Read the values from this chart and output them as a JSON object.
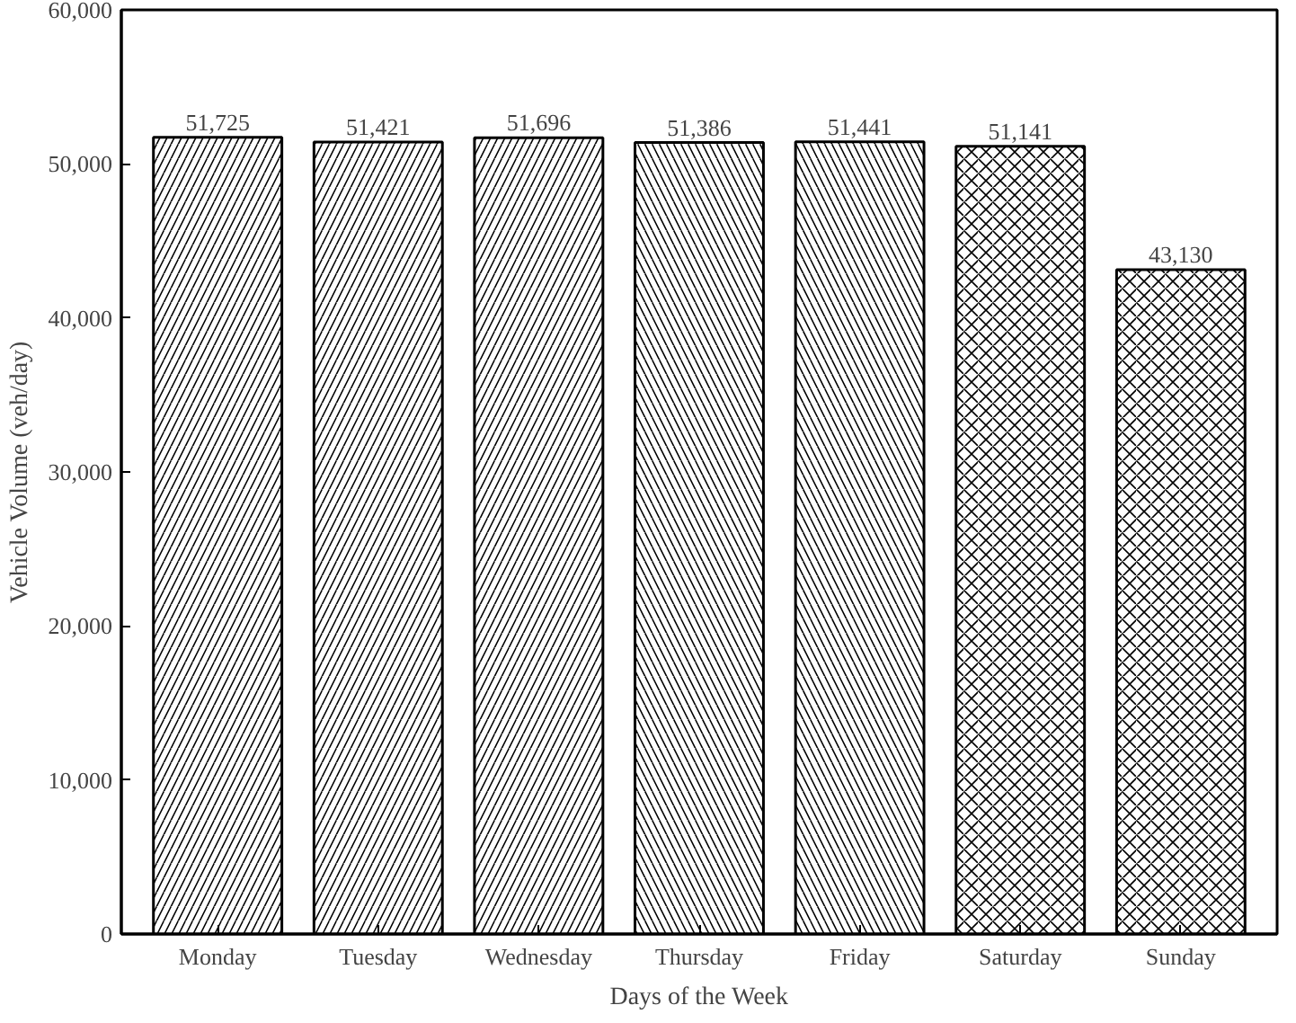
{
  "chart_data": {
    "type": "bar",
    "xlabel": "Days of the Week",
    "ylabel": "Vehicle Volume (veh/day)",
    "categories": [
      "Monday",
      "Tuesday",
      "Wednesday",
      "Thursday",
      "Friday",
      "Saturday",
      "Sunday"
    ],
    "values": [
      51725,
      51421,
      51696,
      51386,
      51441,
      51141,
      43130
    ],
    "value_labels": [
      "51,725",
      "51,421",
      "51,696",
      "51,386",
      "51,441",
      "51,141",
      "43,130"
    ],
    "color": "#ffffff",
    "ylim": [
      0,
      60000
    ],
    "yticks": [
      {
        "value": 0,
        "label": "0"
      },
      {
        "value": 10000,
        "label": "10,000"
      },
      {
        "value": 20000,
        "label": "20,000"
      },
      {
        "value": 30000,
        "label": "30,000"
      },
      {
        "value": 40000,
        "label": "40,000"
      },
      {
        "value": 50000,
        "label": "50,000"
      },
      {
        "value": 60000,
        "label": "60,000"
      }
    ],
    "grid": false
  }
}
